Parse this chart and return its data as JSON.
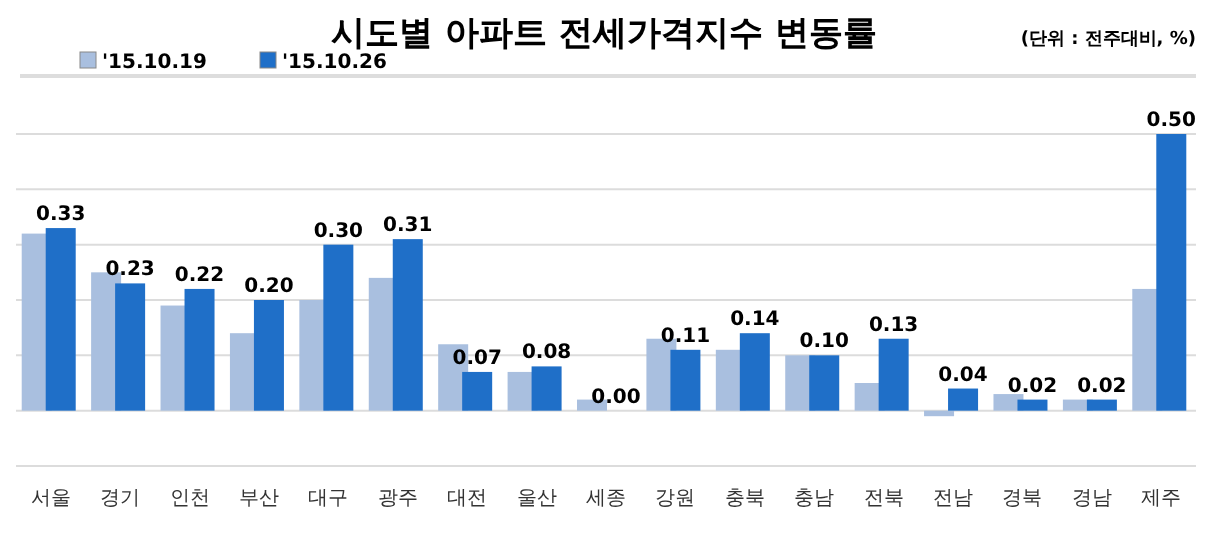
{
  "chart_data": {
    "type": "bar",
    "title": "시도별 아파트 전세가격지수 변동률",
    "annotations": [
      "(단위 : 전주대비, %)"
    ],
    "categories": [
      "서울",
      "경기",
      "인천",
      "부산",
      "대구",
      "광주",
      "대전",
      "울산",
      "세종",
      "강원",
      "충북",
      "충남",
      "전북",
      "전남",
      "경북",
      "경남",
      "제주"
    ],
    "series": [
      {
        "name": "'15.10.19",
        "color": "#a9bfdf",
        "values": [
          0.32,
          0.25,
          0.19,
          0.14,
          0.2,
          0.24,
          0.12,
          0.07,
          0.02,
          0.13,
          0.11,
          0.1,
          0.05,
          -0.01,
          0.03,
          0.02,
          0.22
        ]
      },
      {
        "name": "'15.10.26",
        "color": "#1f6fc8",
        "values": [
          0.33,
          0.23,
          0.22,
          0.2,
          0.3,
          0.31,
          0.07,
          0.08,
          0.0,
          0.11,
          0.14,
          0.1,
          0.13,
          0.04,
          0.02,
          0.02,
          0.5
        ],
        "value_labels": [
          "0.33",
          "0.23",
          "0.22",
          "0.20",
          "0.30",
          "0.31",
          "0.07",
          "0.08",
          "0.00",
          "0.11",
          "0.14",
          "0.10",
          "0.13",
          "0.04",
          "0.02",
          "0.02",
          "0.50"
        ]
      }
    ],
    "ylim": [
      -0.1,
      0.5
    ],
    "yticks": [
      {
        "value": -0.1,
        "label": null
      },
      {
        "value": 0,
        "label": null
      },
      {
        "value": 0.1,
        "label": null
      },
      {
        "value": 0.2,
        "label": null
      },
      {
        "value": 0.3,
        "label": null
      },
      {
        "value": 0.4,
        "label": null
      },
      {
        "value": 0.5,
        "label": null
      }
    ],
    "grid": "y",
    "legend": "top left",
    "tick_labels": "x"
  }
}
